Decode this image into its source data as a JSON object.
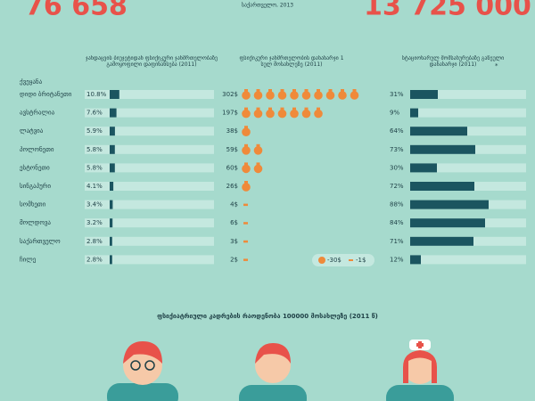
{
  "header": {
    "left_number": "76 658",
    "subtitle": "საქართველო, 2013",
    "right_number": "13 725 000"
  },
  "table": {
    "col_country": "ქვეყანა",
    "col_budget": "ჯანდაცვის ბიუჯეტიდან ფსიქიკური ჯანმრთელობაზე გამოყოფილი დაფინანსება (2011)",
    "col_spend": "ფსიქიკური ჯანმრთელობის დანახარჯი 1 სულ მოსახლეზე (2011)",
    "col_inpatient": "სტაციონარულ მომსახურებაზე გაწეული დანახარჯი (2011)",
    "footnote_mark": "*",
    "rows": [
      {
        "country": "დიდი ბრიტანეთი",
        "budget": 10.8,
        "budget_label": "10.8%",
        "spend": 302,
        "spend_label": "302$",
        "inpatient": 31,
        "inpatient_label": "31%"
      },
      {
        "country": "ავსტრალია",
        "budget": 7.6,
        "budget_label": "7.6%",
        "spend": 197,
        "spend_label": "197$",
        "inpatient": 9,
        "inpatient_label": "9%"
      },
      {
        "country": "ლატვია",
        "budget": 5.9,
        "budget_label": "5.9%",
        "spend": 38,
        "spend_label": "38$",
        "inpatient": 64,
        "inpatient_label": "64%"
      },
      {
        "country": "პოლონეთი",
        "budget": 5.8,
        "budget_label": "5.8%",
        "spend": 59,
        "spend_label": "59$",
        "inpatient": 73,
        "inpatient_label": "73%"
      },
      {
        "country": "ესტონეთი",
        "budget": 5.8,
        "budget_label": "5.8%",
        "spend": 60,
        "spend_label": "60$",
        "inpatient": 30,
        "inpatient_label": "30%"
      },
      {
        "country": "სინგაპური",
        "budget": 4.1,
        "budget_label": "4.1%",
        "spend": 26,
        "spend_label": "26$",
        "inpatient": 72,
        "inpatient_label": "72%"
      },
      {
        "country": "სომხეთი",
        "budget": 3.4,
        "budget_label": "3.4%",
        "spend": 4,
        "spend_label": "4$",
        "inpatient": 88,
        "inpatient_label": "88%"
      },
      {
        "country": "მოლდოვა",
        "budget": 3.2,
        "budget_label": "3.2%",
        "spend": 6,
        "spend_label": "6$",
        "inpatient": 84,
        "inpatient_label": "84%"
      },
      {
        "country": "საქართველო",
        "budget": 2.8,
        "budget_label": "2.8%",
        "spend": 3,
        "spend_label": "3$",
        "inpatient": 71,
        "inpatient_label": "71%"
      },
      {
        "country": "ჩილე",
        "budget": 2.8,
        "budget_label": "2.8%",
        "spend": 2,
        "spend_label": "2$",
        "inpatient": 12,
        "inpatient_label": "12%"
      }
    ],
    "legend": {
      "bag": "-30$",
      "dash": "-1$"
    }
  },
  "section_title": "ფსიქიატრიული კადრების რაოდენობა 100000 მოსახლეზე (2011 წ)"
}
